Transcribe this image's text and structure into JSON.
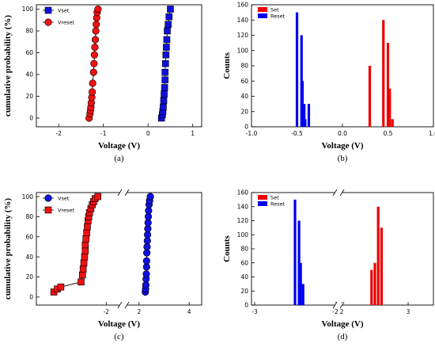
{
  "chart_data": [
    {
      "id": "a",
      "type": "scatter",
      "caption": "(a)",
      "xlabel": "Voltage (V)",
      "ylabel": "cumulative probability (%)",
      "xlim": [
        -2.5,
        1.2
      ],
      "ylim": [
        -8,
        104
      ],
      "xticks": [
        -2,
        -1,
        0,
        1
      ],
      "yticks": [
        0,
        20,
        40,
        60,
        80,
        100
      ],
      "grid": false,
      "legend_position": "top-left",
      "series": [
        {
          "name": "Vset",
          "marker": "square",
          "color": "#1010dd",
          "x": [
            0.3,
            0.32,
            0.33,
            0.34,
            0.35,
            0.36,
            0.37,
            0.38,
            0.38,
            0.39,
            0.4,
            0.41,
            0.42,
            0.43,
            0.45,
            0.47,
            0.5
          ],
          "y": [
            0,
            3,
            6,
            10,
            16,
            22,
            28,
            35,
            42,
            50,
            58,
            65,
            72,
            80,
            86,
            93,
            100
          ]
        },
        {
          "name": "Vreset",
          "marker": "circle",
          "color": "#ee1111",
          "x": [
            -1.32,
            -1.3,
            -1.29,
            -1.28,
            -1.27,
            -1.26,
            -1.25,
            -1.24,
            -1.22,
            -1.21,
            -1.2,
            -1.19,
            -1.18,
            -1.17,
            -1.16,
            -1.15,
            -1.14,
            -1.12
          ],
          "y": [
            0,
            4,
            7,
            10,
            14,
            19,
            24,
            32,
            42,
            50,
            58,
            65,
            72,
            80,
            86,
            92,
            97,
            100
          ]
        }
      ]
    },
    {
      "id": "b",
      "type": "bar",
      "caption": "(b)",
      "xlabel": "Voltage (V)",
      "ylabel": "Counts",
      "xlim": [
        -1.0,
        1.0
      ],
      "ylim": [
        0,
        160
      ],
      "xticks": [
        -1.0,
        -0.5,
        0.0,
        0.5,
        1.0
      ],
      "xticklabels": [
        "-1.0",
        "-0.5",
        "0.0",
        "0.5",
        "1.0"
      ],
      "yticks": [
        0,
        20,
        40,
        60,
        80,
        100,
        120,
        140,
        160
      ],
      "grid": false,
      "legend_position": "top-left",
      "series": [
        {
          "name": "Set",
          "color": "#ee0000",
          "x": [
            0.3,
            0.45,
            0.5,
            0.52,
            0.55
          ],
          "values": [
            80,
            140,
            110,
            50,
            10
          ]
        },
        {
          "name": "Reset",
          "color": "#0000ee",
          "x": [
            -0.5,
            -0.45,
            -0.44,
            -0.42,
            -0.41,
            -0.37
          ],
          "values": [
            150,
            120,
            60,
            30,
            10,
            30
          ]
        }
      ]
    },
    {
      "id": "c",
      "type": "scatter",
      "caption": "(c)",
      "xlabel": "Voltage (V)",
      "ylabel": "cumulative probability (%)",
      "axis_break": true,
      "xticks": [
        -2,
        2,
        4
      ],
      "yticks": [
        0,
        20,
        40,
        60,
        80,
        100
      ],
      "ylim": [
        -8,
        104
      ],
      "grid": false,
      "legend_position": "top-left",
      "series": [
        {
          "name": "Vset",
          "marker": "circle",
          "color": "#1010dd",
          "x": [
            2.25,
            2.26,
            2.27,
            2.28,
            2.29,
            2.3,
            2.3,
            2.31,
            2.32,
            2.33,
            2.34,
            2.35,
            2.36,
            2.37,
            2.38,
            2.4,
            2.42,
            2.45
          ],
          "y": [
            5,
            8,
            12,
            18,
            23,
            30,
            36,
            44,
            50,
            56,
            62,
            68,
            74,
            80,
            86,
            92,
            96,
            100
          ]
        },
        {
          "name": "Vreset",
          "marker": "square",
          "color": "#ee1111",
          "x": [
            -2.75,
            -2.7,
            -2.65,
            -2.36,
            -2.34,
            -2.33,
            -2.32,
            -2.31,
            -2.3,
            -2.3,
            -2.29,
            -2.28,
            -2.27,
            -2.26,
            -2.25,
            -2.24,
            -2.22,
            -2.2,
            -2.18,
            -2.16,
            -2.12
          ],
          "y": [
            5,
            8,
            10,
            15,
            22,
            28,
            34,
            40,
            46,
            52,
            58,
            64,
            70,
            76,
            80,
            84,
            88,
            92,
            95,
            98,
            100
          ]
        }
      ]
    },
    {
      "id": "d",
      "type": "bar",
      "caption": "(d)",
      "xlabel": "Voltage (V)",
      "ylabel": "Counts",
      "axis_break": true,
      "xticklabels": [
        "-3",
        "-2",
        "2",
        "3"
      ],
      "ylim": [
        0,
        160
      ],
      "yticks": [
        0,
        20,
        40,
        60,
        80,
        100,
        120,
        140,
        160
      ],
      "grid": false,
      "legend_position": "top-left",
      "series": [
        {
          "name": "Set",
          "color": "#ee0000",
          "x": [
            2.45,
            2.5,
            2.55,
            2.6
          ],
          "values": [
            50,
            60,
            140,
            110
          ]
        },
        {
          "name": "Reset",
          "color": "#0000ee",
          "x": [
            -2.5,
            -2.45,
            -2.43,
            -2.4
          ],
          "values": [
            150,
            120,
            60,
            30
          ]
        }
      ]
    }
  ]
}
